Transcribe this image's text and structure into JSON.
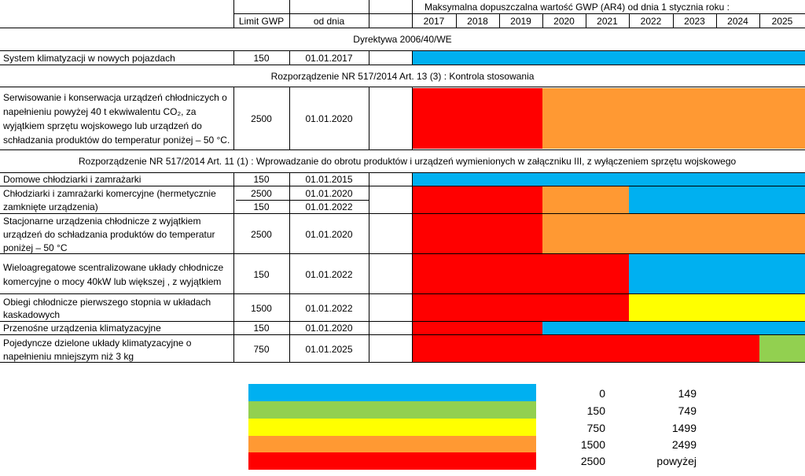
{
  "colors": {
    "blue": "#00b0f0",
    "green": "#92d050",
    "yellow": "#ffff00",
    "orange": "#ff9933",
    "red": "#ff0000"
  },
  "header": {
    "super": "Maksymalna dopuszczalna wartość GWP (AR4) od dnia 1 stycznia roku :",
    "limit": "Limit GWP",
    "date": "od dnia",
    "years": [
      "2017",
      "2018",
      "2019",
      "2020",
      "2021",
      "2022",
      "2023",
      "2024",
      "2025"
    ]
  },
  "sections": [
    "Dyrektywa 2006/40/WE",
    "Rozporządzenie NR 517/2014 Art. 13 (3) : Kontrola stosowania",
    "Rozporządzenie NR 517/2014 Art. 11 (1) : Wprowadzanie do obrotu produktów i urządzeń wymienionych w załączniku III, z wyłączeniem sprzętu wojskowego"
  ],
  "rows": [
    {
      "lines": [
        "System klimatyzacji w nowych pojazdach"
      ],
      "limits": [
        "150"
      ],
      "dates": [
        "01.01.2017"
      ]
    },
    {
      "lines": [
        "Serwisowanie i konserwacja urządzeń chłodniczych o",
        "napełnieniu powyżej 40 t ekwiwalentu CO₂, za",
        "wyjątkiem sprzętu wojskowego lub urządzeń do",
        "schładzania produktów do temperatur poniżej – 50 °C."
      ],
      "limits": [
        "2500"
      ],
      "dates": [
        "01.01.2020"
      ]
    },
    {
      "lines": [
        "Domowe chłodziarki i zamrażarki"
      ],
      "limits": [
        "150"
      ],
      "dates": [
        "01.01.2015"
      ]
    },
    {
      "lines": [
        "Chłodziarki i zamrażarki komercyjne (hermetycznie",
        "zamknięte urządzenia)"
      ],
      "limits": [
        "2500",
        "150"
      ],
      "dates": [
        "01.01.2020",
        "01.01.2022"
      ]
    },
    {
      "lines": [
        "Stacjonarne urządzenia chłodnicze z wyjątkiem",
        "urządzeń do schładzania produktów do temperatur",
        "poniżej – 50 °C"
      ],
      "limits": [
        "2500"
      ],
      "dates": [
        "01.01.2020"
      ]
    },
    {
      "lines": [
        "Wieloagregatowe scentralizowane układy chłodnicze",
        "komercyjne o mocy 40kW lub większej , z wyjątkiem"
      ],
      "limits": [
        "150"
      ],
      "dates": [
        "01.01.2022"
      ]
    },
    {
      "lines": [
        "Obiegi chłodnicze pierwszego stopnia w układach",
        "kaskadowych"
      ],
      "limits": [
        "1500"
      ],
      "dates": [
        "01.01.2022"
      ]
    },
    {
      "lines": [
        "Przenośne urządzenia klimatyzacyjne"
      ],
      "limits": [
        "150"
      ],
      "dates": [
        "01.01.2020"
      ]
    },
    {
      "lines": [
        "Pojedyncze dzielone układy klimatyzacyjne o",
        "napełnieniu mniejszym niż 3 kg"
      ],
      "limits": [
        "750"
      ],
      "dates": [
        "01.01.2025"
      ]
    }
  ],
  "legend": [
    {
      "color": "blue",
      "from": "0",
      "to": "149"
    },
    {
      "color": "green",
      "from": "150",
      "to": "749"
    },
    {
      "color": "yellow",
      "from": "750",
      "to": "1499"
    },
    {
      "color": "orange",
      "from": "1500",
      "to": "2499"
    },
    {
      "color": "red",
      "from": "2500",
      "to": "powyżej"
    }
  ]
}
